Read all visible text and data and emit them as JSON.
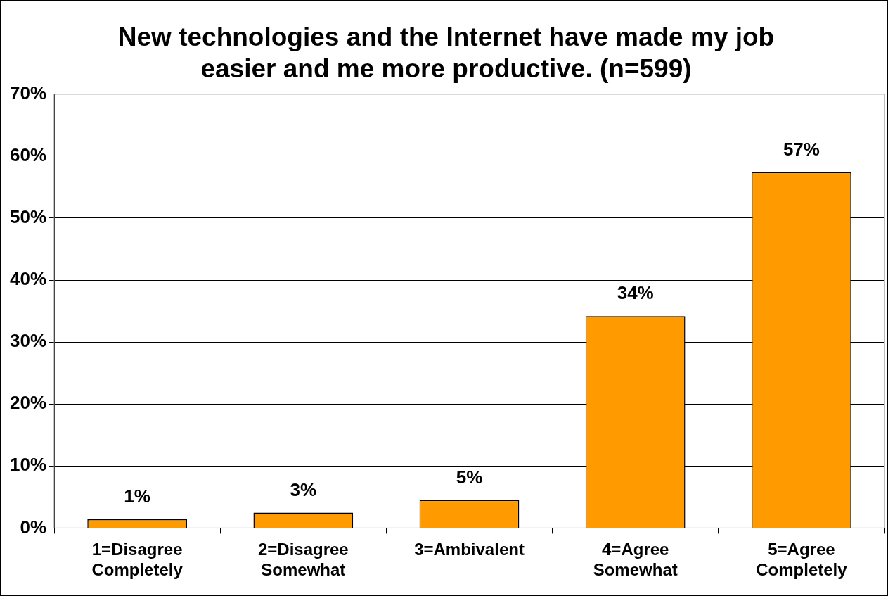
{
  "chart_data": {
    "type": "bar",
    "title": "New technologies and the Internet have made my job easier and me more productive. (n=599)",
    "categories": [
      "1=Disagree Completely",
      "2=Disagree Somewhat",
      "3=Ambivalent",
      "4=Agree Somewhat",
      "5=Agree Completely"
    ],
    "values": [
      1.4,
      2.5,
      4.5,
      34.2,
      57.4
    ],
    "value_labels": [
      "1%",
      "3%",
      "5%",
      "34%",
      "57%"
    ],
    "color": "#ff9a00",
    "ylim": [
      0,
      70
    ],
    "yticks": [
      {
        "value": 0,
        "label": "0%"
      },
      {
        "value": 10,
        "label": "10%"
      },
      {
        "value": 20,
        "label": "20%"
      },
      {
        "value": 30,
        "label": "30%"
      },
      {
        "value": 40,
        "label": "40%"
      },
      {
        "value": 50,
        "label": "50%"
      },
      {
        "value": 60,
        "label": "60%"
      },
      {
        "value": 70,
        "label": "70%"
      }
    ],
    "grid": "y",
    "legend": false
  }
}
